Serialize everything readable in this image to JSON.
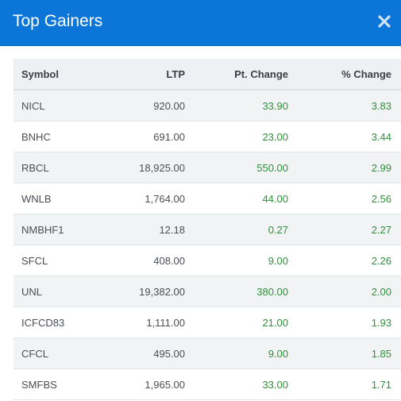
{
  "modal": {
    "title": "Top Gainers",
    "close_icon": "close-icon"
  },
  "table": {
    "headers": {
      "symbol": "Symbol",
      "ltp": "LTP",
      "pt_change": "Pt. Change",
      "pct_change": "% Change"
    },
    "rows": [
      {
        "symbol": "NICL",
        "ltp": "920.00",
        "pt_change": "33.90",
        "pct_change": "3.83"
      },
      {
        "symbol": "BNHC",
        "ltp": "691.00",
        "pt_change": "23.00",
        "pct_change": "3.44"
      },
      {
        "symbol": "RBCL",
        "ltp": "18,925.00",
        "pt_change": "550.00",
        "pct_change": "2.99"
      },
      {
        "symbol": "WNLB",
        "ltp": "1,764.00",
        "pt_change": "44.00",
        "pct_change": "2.56"
      },
      {
        "symbol": "NMBHF1",
        "ltp": "12.18",
        "pt_change": "0.27",
        "pct_change": "2.27"
      },
      {
        "symbol": "SFCL",
        "ltp": "408.00",
        "pt_change": "9.00",
        "pct_change": "2.26"
      },
      {
        "symbol": "UNL",
        "ltp": "19,382.00",
        "pt_change": "380.00",
        "pct_change": "2.00"
      },
      {
        "symbol": "ICFCD83",
        "ltp": "1,111.00",
        "pt_change": "21.00",
        "pct_change": "1.93"
      },
      {
        "symbol": "CFCL",
        "ltp": "495.00",
        "pt_change": "9.00",
        "pct_change": "1.85"
      },
      {
        "symbol": "SMFBS",
        "ltp": "1,965.00",
        "pt_change": "33.00",
        "pct_change": "1.71"
      }
    ]
  },
  "colors": {
    "header_bg": "#0b76d8",
    "gain_green": "#2f8f3a"
  }
}
